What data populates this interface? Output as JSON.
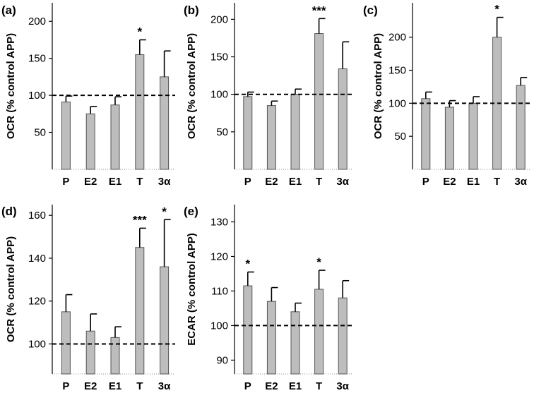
{
  "chart_data": [
    {
      "type": "bar",
      "panel_label": "(a)",
      "ylabel": "OCR (% control APP)",
      "categories": [
        "P",
        "E2",
        "E1",
        "T",
        "3α"
      ],
      "values": [
        91,
        75,
        87,
        155,
        125
      ],
      "errors": [
        8,
        10,
        11,
        20,
        35
      ],
      "significance": [
        "",
        "",
        "",
        "*",
        ""
      ],
      "yticks": [
        50,
        100,
        150,
        200
      ],
      "ylim": [
        0,
        225
      ],
      "reference_line": 100
    },
    {
      "type": "bar",
      "panel_label": "(b)",
      "ylabel": "OCR (% control APP)",
      "categories": [
        "P",
        "E2",
        "E1",
        "T",
        "3α"
      ],
      "values": [
        97,
        85,
        100,
        181,
        134
      ],
      "errors": [
        6,
        6,
        7,
        20,
        36
      ],
      "significance": [
        "",
        "",
        "",
        "***",
        ""
      ],
      "yticks": [
        50,
        100,
        150,
        200
      ],
      "ylim": [
        0,
        222
      ],
      "reference_line": 100
    },
    {
      "type": "bar",
      "panel_label": "(c)",
      "ylabel": "OCR (% control APP)",
      "categories": [
        "P",
        "E2",
        "E1",
        "T",
        "3α"
      ],
      "values": [
        107,
        94,
        100,
        200,
        127
      ],
      "errors": [
        10,
        10,
        10,
        30,
        12
      ],
      "significance": [
        "",
        "",
        "",
        "*",
        ""
      ],
      "yticks": [
        50,
        100,
        150,
        200
      ],
      "ylim": [
        0,
        252
      ],
      "reference_line": 100
    },
    {
      "type": "bar",
      "panel_label": "(d)",
      "ylabel": "OCR (% control APP)",
      "categories": [
        "P",
        "E2",
        "E1",
        "T",
        "3α"
      ],
      "values": [
        115,
        106,
        103,
        145,
        136
      ],
      "errors": [
        8,
        8,
        5,
        9,
        22
      ],
      "significance": [
        "",
        "",
        "",
        "***",
        "*"
      ],
      "yticks": [
        100,
        120,
        140,
        160
      ],
      "ylim": [
        86,
        165
      ],
      "reference_line": 100
    },
    {
      "type": "bar",
      "panel_label": "(e)",
      "ylabel": "ECAR (% control APP)",
      "categories": [
        "P",
        "E2",
        "E1",
        "T",
        "3α"
      ],
      "values": [
        111.5,
        107,
        104,
        110.5,
        108
      ],
      "errors": [
        4,
        4,
        2.5,
        5.5,
        5
      ],
      "significance": [
        "*",
        "",
        "",
        "*",
        ""
      ],
      "yticks": [
        90,
        100,
        110,
        120,
        130
      ],
      "ylim": [
        86,
        135
      ],
      "reference_line": 100
    }
  ]
}
